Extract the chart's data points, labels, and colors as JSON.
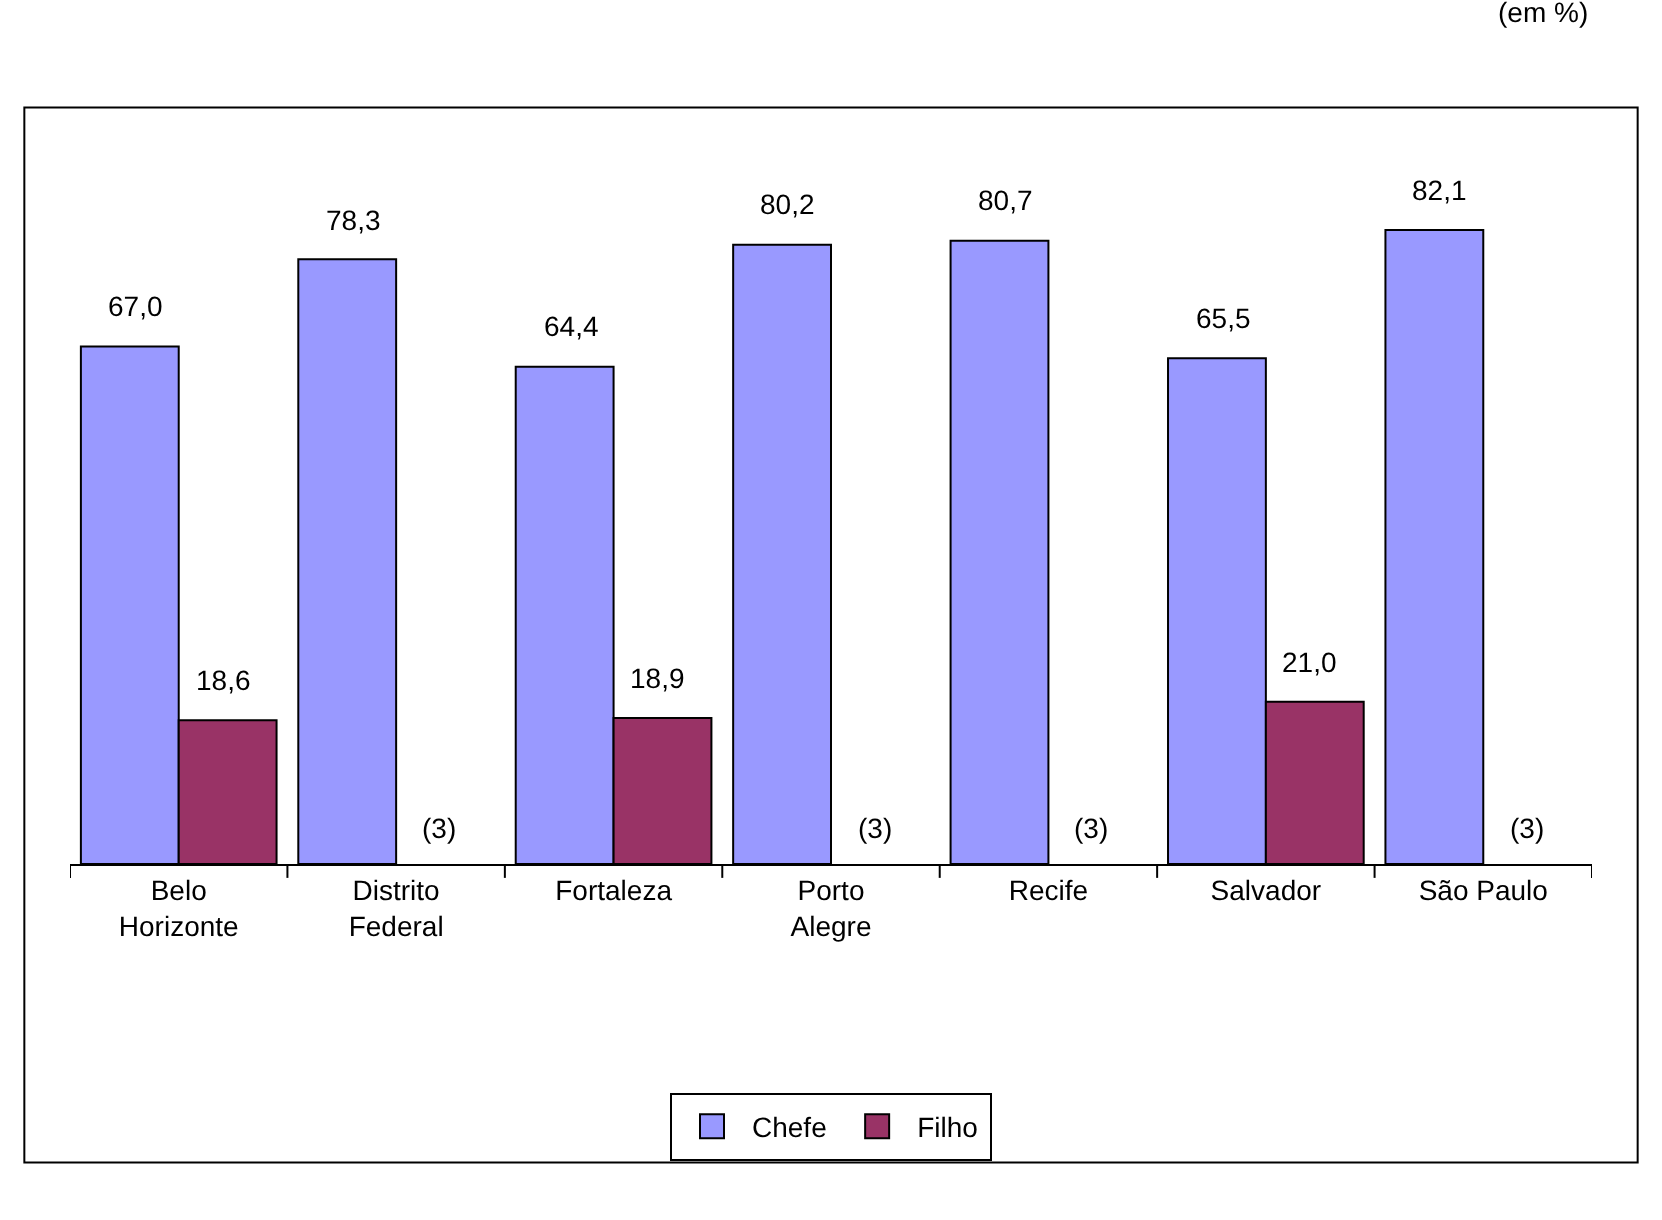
{
  "chart_data": {
    "type": "bar",
    "categories": [
      "Belo Horizonte",
      "Distrito Federal",
      "Fortaleza",
      "Porto Alegre",
      "Recife",
      "Salvador",
      "São Paulo"
    ],
    "series": [
      {
        "name": "Chefe",
        "color": "#9999ff",
        "values": [
          67.0,
          78.3,
          64.4,
          80.2,
          80.7,
          65.5,
          82.1
        ],
        "value_labels": [
          "67,0",
          "78,3",
          "64,4",
          "80,2",
          "80,7",
          "65,5",
          "82,1"
        ]
      },
      {
        "name": "Filho",
        "color": "#993366",
        "values": [
          18.6,
          null,
          18.9,
          null,
          null,
          21.0,
          null
        ],
        "value_labels": [
          "18,6",
          "(3)",
          "18,9",
          "(3)",
          "(3)",
          "21,0",
          "(3)"
        ]
      }
    ],
    "tick_labels": "x",
    "legend": "bottom",
    "annotations": [
      "(em %)"
    ]
  }
}
